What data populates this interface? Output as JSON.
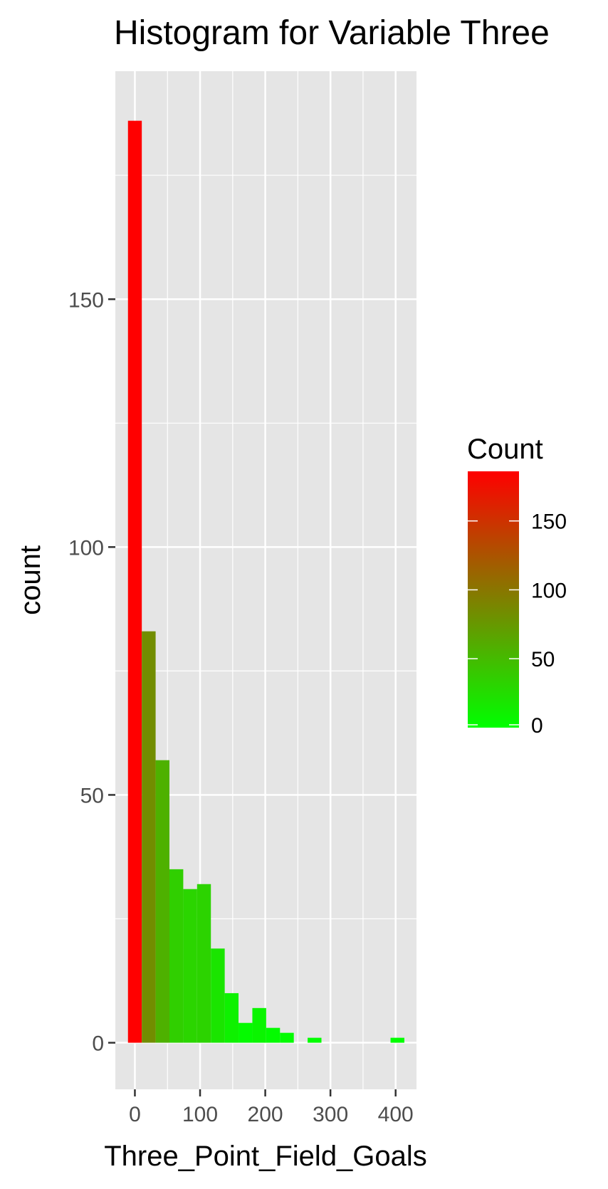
{
  "chart_data": {
    "type": "bar",
    "title": "Histogram for Variable Three",
    "xlabel": "Three_Point_Field_Goals",
    "ylabel": "count",
    "xlim": [
      -30,
      432
    ],
    "ylim": [
      -9.4,
      196
    ],
    "x_ticks": [
      0,
      100,
      200,
      300,
      400
    ],
    "x_minor": [
      50,
      150,
      250,
      350
    ],
    "y_ticks": [
      0,
      50,
      100,
      150
    ],
    "y_minor": [
      25,
      75,
      125,
      175
    ],
    "bin_width": 21.2,
    "bins": [
      {
        "x": 0,
        "count": 186
      },
      {
        "x": 21.2,
        "count": 83
      },
      {
        "x": 42.4,
        "count": 57
      },
      {
        "x": 63.6,
        "count": 35
      },
      {
        "x": 84.8,
        "count": 31
      },
      {
        "x": 106,
        "count": 32
      },
      {
        "x": 127.2,
        "count": 19
      },
      {
        "x": 148.4,
        "count": 10
      },
      {
        "x": 169.6,
        "count": 4
      },
      {
        "x": 190.8,
        "count": 7
      },
      {
        "x": 212,
        "count": 3
      },
      {
        "x": 233.2,
        "count": 2
      },
      {
        "x": 254.4,
        "count": 0
      },
      {
        "x": 275.6,
        "count": 1
      },
      {
        "x": 296.8,
        "count": 0
      },
      {
        "x": 318,
        "count": 0
      },
      {
        "x": 339.2,
        "count": 0
      },
      {
        "x": 360.4,
        "count": 0
      },
      {
        "x": 381.6,
        "count": 0
      },
      {
        "x": 402.8,
        "count": 1
      }
    ],
    "fill_low_color": "#00ff00",
    "fill_high_color": "#ff0000",
    "grid": true,
    "panel_color": "#e5e5e5",
    "legend": {
      "title": "Count",
      "position": "right",
      "min": 0,
      "max": 186,
      "breaks": [
        0,
        50,
        100,
        150
      ]
    }
  }
}
